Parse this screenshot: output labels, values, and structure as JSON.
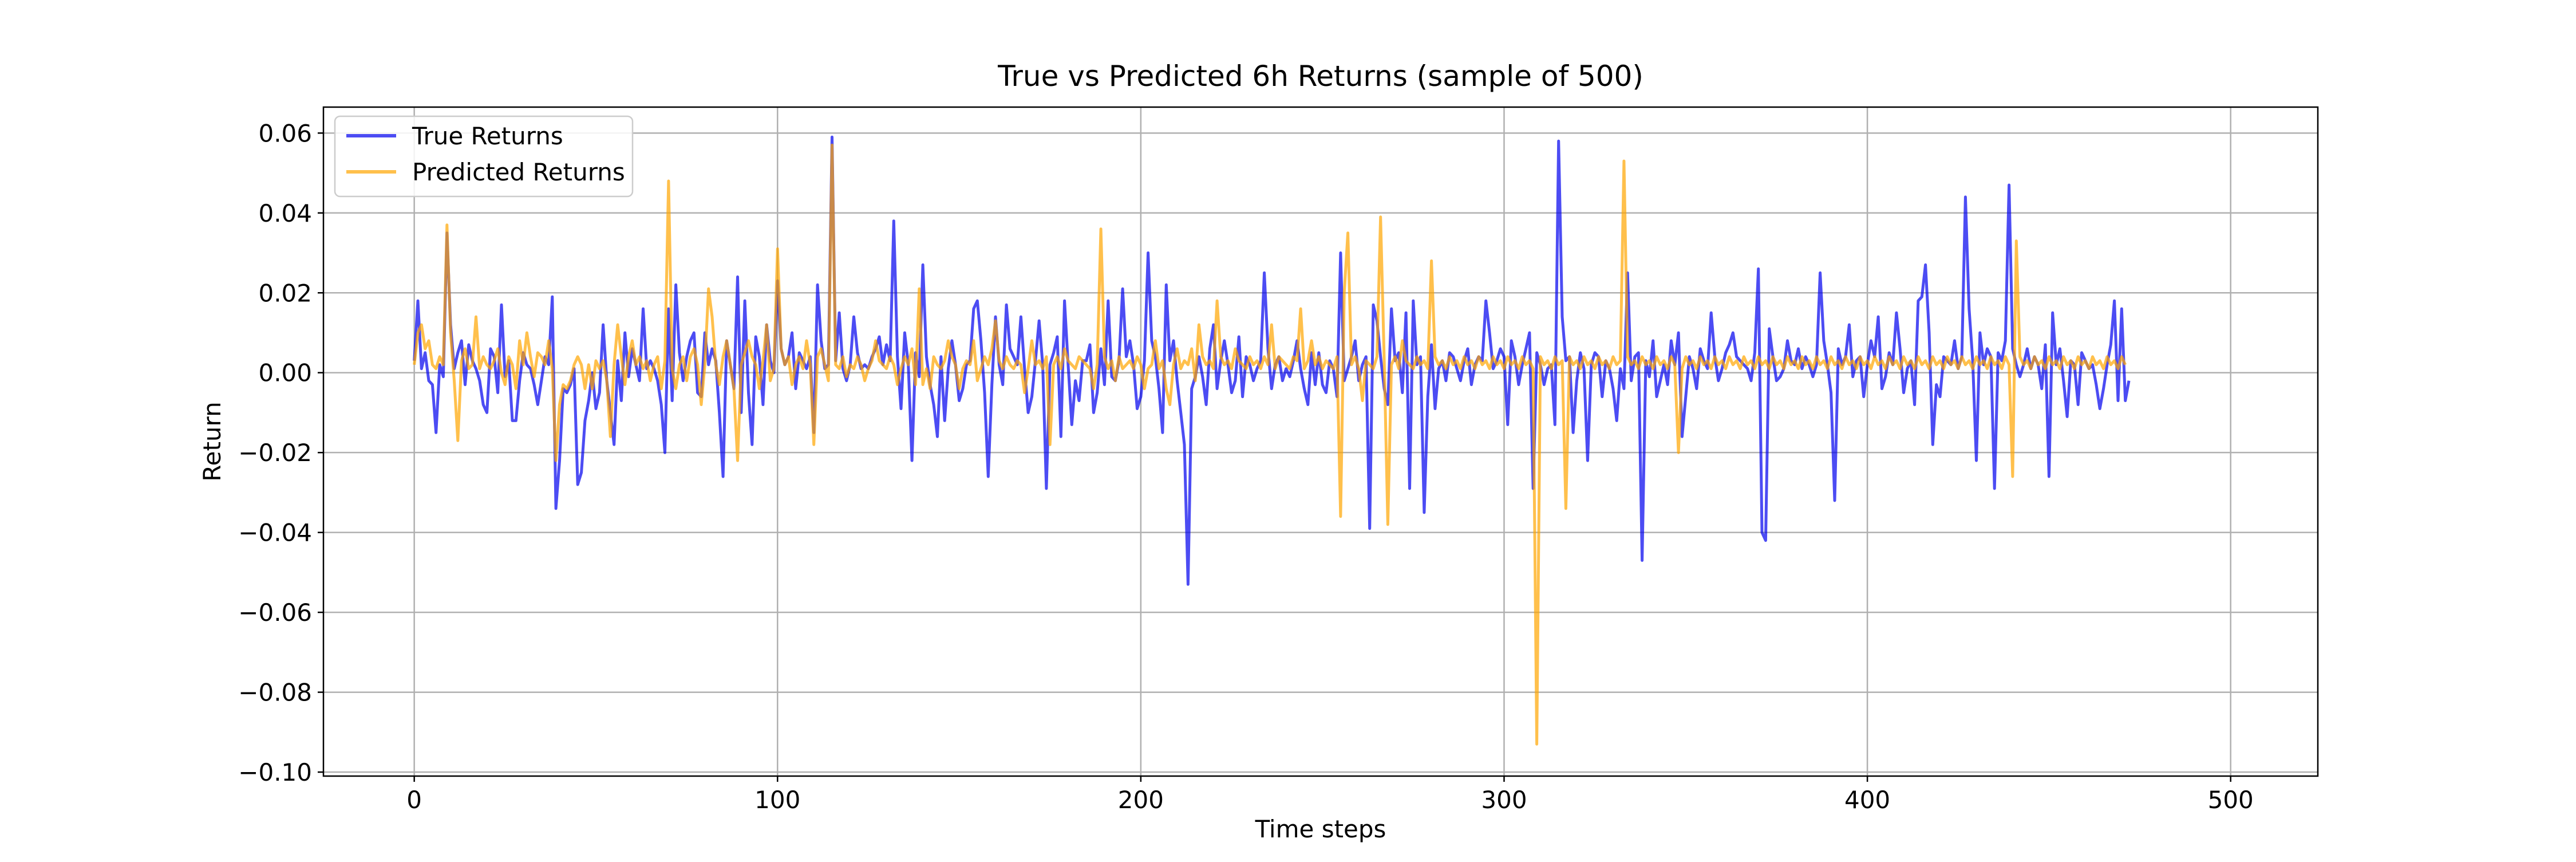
{
  "chart_data": {
    "type": "line",
    "title": "True vs Predicted 6h Returns (sample of 500)",
    "xlabel": "Time steps",
    "ylabel": "Return",
    "xlim": [
      -25,
      524
    ],
    "ylim": [
      -0.101,
      0.0665
    ],
    "xticks": [
      0,
      100,
      200,
      300,
      400,
      500
    ],
    "xtick_labels": [
      "0",
      "100",
      "200",
      "300",
      "400",
      "500"
    ],
    "yticks": [
      0.06,
      0.04,
      0.02,
      0.0,
      -0.02,
      -0.04,
      -0.06,
      -0.08,
      -0.1
    ],
    "ytick_labels": [
      "0.06",
      "0.04",
      "0.02",
      "0.00",
      "−0.02",
      "−0.04",
      "−0.06",
      "−0.08",
      "−0.10"
    ],
    "grid": true,
    "legend_position": "upper-left",
    "series": [
      {
        "name": "True Returns",
        "color": "#0000ee",
        "opacity": 0.7,
        "x_start": 0,
        "values": [
          0.003,
          0.018,
          0.001,
          0.005,
          -0.002,
          -0.003,
          -0.015,
          0.002,
          -0.001,
          0.035,
          0.012,
          0.001,
          0.005,
          0.008,
          -0.003,
          0.007,
          0.003,
          0.001,
          -0.002,
          -0.008,
          -0.01,
          0.006,
          0.004,
          -0.005,
          0.017,
          -0.001,
          0.003,
          -0.012,
          -0.012,
          -0.002,
          0.005,
          0.002,
          0.001,
          -0.003,
          -0.008,
          -0.002,
          0.004,
          0.002,
          0.019,
          -0.034,
          -0.022,
          -0.004,
          -0.005,
          -0.003,
          0.001,
          -0.028,
          -0.025,
          -0.012,
          -0.007,
          0.0,
          -0.009,
          -0.005,
          0.012,
          -0.002,
          -0.01,
          -0.018,
          0.003,
          -0.007,
          0.01,
          -0.001,
          0.006,
          0.002,
          -0.002,
          0.016,
          0.001,
          0.003,
          0.001,
          -0.002,
          -0.008,
          -0.02,
          0.016,
          -0.007,
          0.022,
          0.005,
          -0.002,
          0.004,
          0.008,
          0.01,
          -0.005,
          -0.006,
          0.01,
          0.002,
          0.006,
          0.003,
          -0.01,
          -0.026,
          0.008,
          0.002,
          -0.004,
          0.024,
          -0.01,
          0.018,
          -0.005,
          -0.018,
          0.009,
          0.004,
          -0.008,
          0.012,
          0.003,
          0.0,
          0.023,
          0.006,
          0.002,
          0.004,
          0.01,
          -0.004,
          0.005,
          0.003,
          0.001,
          0.004,
          -0.015,
          0.022,
          0.008,
          0.001,
          0.002,
          0.059,
          0.003,
          0.015,
          0.001,
          -0.002,
          0.002,
          0.014,
          0.005,
          0.001,
          0.002,
          0.001,
          0.004,
          0.006,
          0.009,
          0.002,
          0.007,
          0.003,
          0.038,
          0.004,
          -0.009,
          0.01,
          0.002,
          -0.022,
          0.005,
          -0.001,
          0.027,
          0.004,
          -0.003,
          -0.008,
          -0.016,
          0.004,
          -0.012,
          0.001,
          0.008,
          0.002,
          -0.007,
          -0.004,
          0.002,
          0.003,
          0.016,
          0.018,
          0.008,
          -0.005,
          -0.026,
          -0.003,
          0.014,
          0.002,
          -0.003,
          0.017,
          0.006,
          0.004,
          0.002,
          0.014,
          0.001,
          -0.01,
          -0.006,
          0.003,
          0.013,
          0.002,
          -0.029,
          0.002,
          0.005,
          0.009,
          -0.016,
          0.018,
          0.002,
          -0.013,
          -0.002,
          -0.007,
          0.003,
          0.003,
          0.007,
          -0.01,
          -0.005,
          0.006,
          -0.003,
          0.018,
          -0.001,
          -0.002,
          0.003,
          0.021,
          0.004,
          0.008,
          0.002,
          -0.009,
          -0.006,
          0.003,
          0.03,
          0.008,
          0.004,
          -0.004,
          -0.015,
          0.022,
          0.003,
          0.008,
          -0.002,
          -0.01,
          -0.018,
          -0.053,
          -0.004,
          -0.001,
          0.004,
          -0.001,
          -0.008,
          0.006,
          0.012,
          -0.004,
          0.003,
          0.008,
          0.002,
          -0.005,
          -0.002,
          0.009,
          -0.006,
          0.004,
          0.002,
          -0.002,
          0.001,
          0.003,
          0.025,
          0.006,
          -0.004,
          0.002,
          0.004,
          -0.002,
          0.001,
          -0.001,
          0.003,
          0.008,
          0.001,
          -0.004,
          -0.008,
          0.005,
          -0.003,
          0.005,
          -0.003,
          -0.005,
          0.003,
          0.001,
          -0.006,
          0.03,
          -0.002,
          0.001,
          0.004,
          0.008,
          -0.002,
          0.002,
          0.004,
          -0.039,
          0.017,
          0.013,
          0.004,
          -0.004,
          -0.008,
          0.016,
          0.003,
          0.005,
          -0.005,
          0.015,
          -0.029,
          0.018,
          0.002,
          0.004,
          -0.035,
          -0.006,
          0.007,
          -0.009,
          0.001,
          0.003,
          -0.002,
          0.005,
          0.004,
          0.001,
          -0.002,
          0.003,
          0.006,
          -0.003,
          0.002,
          0.004,
          0.003,
          0.018,
          0.01,
          0.001,
          0.003,
          0.006,
          0.004,
          -0.013,
          0.008,
          0.004,
          -0.003,
          0.002,
          0.006,
          0.01,
          -0.029,
          0.005,
          0.002,
          -0.003,
          0.001,
          0.002,
          -0.013,
          0.058,
          0.014,
          0.003,
          0.004,
          -0.015,
          -0.002,
          0.005,
          0.001,
          -0.022,
          0.002,
          0.005,
          0.004,
          -0.006,
          0.003,
          0.001,
          -0.004,
          -0.012,
          0.001,
          -0.004,
          0.025,
          -0.002,
          0.004,
          0.005,
          -0.047,
          0.003,
          -0.001,
          0.008,
          -0.006,
          -0.002,
          0.002,
          -0.003,
          0.008,
          0.002,
          0.01,
          -0.016,
          -0.006,
          0.004,
          0.001,
          -0.004,
          0.006,
          0.003,
          0.001,
          0.015,
          0.004,
          -0.002,
          0.001,
          0.005,
          0.007,
          0.01,
          0.004,
          0.003,
          0.002,
          0.001,
          -0.002,
          0.005,
          0.026,
          -0.04,
          -0.042,
          0.011,
          0.004,
          -0.002,
          -0.001,
          0.001,
          0.008,
          0.003,
          0.002,
          0.006,
          0.001,
          0.004,
          0.002,
          -0.001,
          0.002,
          0.025,
          0.008,
          0.002,
          -0.005,
          -0.032,
          0.006,
          0.002,
          0.004,
          0.012,
          -0.001,
          0.003,
          0.004,
          -0.006,
          0.002,
          0.008,
          0.004,
          0.014,
          -0.004,
          -0.001,
          0.005,
          0.002,
          0.015,
          0.006,
          -0.005,
          0.001,
          0.003,
          -0.008,
          0.018,
          0.019,
          0.027,
          0.01,
          -0.018,
          -0.003,
          -0.006,
          0.004,
          0.003,
          0.002,
          0.008,
          0.001,
          0.004,
          0.044,
          0.016,
          0.003,
          -0.022,
          0.01,
          0.002,
          0.006,
          0.004,
          -0.029,
          0.005,
          0.003,
          0.008,
          0.047,
          0.006,
          0.002,
          -0.001,
          0.002,
          0.006,
          0.001,
          0.004,
          0.002,
          -0.004,
          0.007,
          -0.026,
          0.015,
          0.002,
          0.006,
          -0.002,
          -0.011,
          0.003,
          0.002,
          -0.008,
          0.005,
          0.003,
          0.001,
          0.002,
          -0.003,
          -0.009,
          -0.004,
          0.002,
          0.007,
          0.018,
          -0.007,
          0.016,
          -0.007,
          -0.002
        ]
      },
      {
        "name": "Predicted Returns",
        "color": "#ffa500",
        "opacity": 0.7,
        "x_start": 0,
        "values": [
          0.002,
          0.01,
          0.012,
          0.006,
          0.008,
          0.002,
          0.001,
          0.004,
          0.002,
          0.037,
          0.01,
          -0.002,
          -0.017,
          0.003,
          0.006,
          0.001,
          0.002,
          0.014,
          0.001,
          0.004,
          0.002,
          0.001,
          0.003,
          0.006,
          0.0,
          -0.003,
          0.004,
          0.002,
          -0.004,
          0.008,
          0.002,
          0.01,
          0.004,
          -0.001,
          0.005,
          0.004,
          0.002,
          0.008,
          0.001,
          -0.022,
          -0.008,
          -0.003,
          -0.004,
          -0.002,
          0.002,
          0.004,
          0.002,
          -0.004,
          0.002,
          -0.004,
          0.003,
          0.001,
          0.003,
          -0.002,
          -0.016,
          0.002,
          0.012,
          0.004,
          -0.003,
          0.004,
          0.008,
          0.002,
          0.004,
          0.001,
          0.003,
          -0.002,
          0.002,
          0.004,
          -0.004,
          0.003,
          0.048,
          0.001,
          -0.004,
          0.002,
          0.004,
          -0.002,
          0.004,
          0.006,
          0.002,
          -0.008,
          0.002,
          0.021,
          0.014,
          0.002,
          -0.003,
          0.004,
          0.008,
          0.002,
          -0.004,
          -0.022,
          0.002,
          0.005,
          0.008,
          0.004,
          0.002,
          -0.004,
          0.003,
          0.012,
          -0.002,
          0.001,
          0.031,
          0.006,
          0.002,
          0.004,
          -0.003,
          0.002,
          0.004,
          0.001,
          0.008,
          0.002,
          -0.018,
          0.004,
          0.006,
          0.002,
          -0.002,
          0.057,
          0.002,
          0.001,
          0.004,
          -0.001,
          0.002,
          0.001,
          0.004,
          0.002,
          -0.002,
          0.001,
          0.003,
          0.008,
          0.003,
          0.002,
          0.001,
          0.004,
          0.002,
          -0.003,
          0.001,
          0.004,
          0.002,
          0.006,
          -0.003,
          0.021,
          -0.003,
          0.001,
          -0.004,
          0.004,
          0.002,
          0.001,
          0.003,
          0.008,
          0.004,
          0.002,
          -0.004,
          0.001,
          0.003,
          0.002,
          0.008,
          -0.002,
          0.001,
          0.004,
          0.002,
          0.006,
          0.013,
          0.003,
          0.001,
          0.004,
          0.002,
          0.001,
          0.003,
          0.002,
          -0.005,
          0.001,
          0.008,
          0.002,
          0.003,
          0.001,
          0.004,
          -0.018,
          0.002,
          0.004,
          0.001,
          0.006,
          0.003,
          0.002,
          0.001,
          0.004,
          0.003,
          0.002,
          0.001,
          -0.004,
          0.002,
          0.036,
          0.004,
          0.001,
          0.003,
          -0.002,
          0.004,
          0.001,
          0.002,
          0.003,
          0.001,
          0.004,
          0.002,
          -0.004,
          0.001,
          0.002,
          0.008,
          0.001,
          0.003,
          -0.004,
          -0.008,
          0.002,
          0.006,
          0.001,
          0.003,
          0.002,
          0.006,
          -0.002,
          0.012,
          0.004,
          0.002,
          0.003,
          0.001,
          0.018,
          0.004,
          0.002,
          0.003,
          0.001,
          0.006,
          0.003,
          0.002,
          0.001,
          0.004,
          0.002,
          0.003,
          0.001,
          0.004,
          0.002,
          0.012,
          0.001,
          0.004,
          0.003,
          0.002,
          0.001,
          0.004,
          0.003,
          0.016,
          0.001,
          0.003,
          0.008,
          0.002,
          0.004,
          0.001,
          0.003,
          0.002,
          0.001,
          0.004,
          -0.036,
          0.02,
          0.035,
          0.002,
          0.004,
          0.001,
          -0.007,
          0.003,
          0.002,
          0.001,
          0.004,
          0.039,
          0.003,
          -0.038,
          0.002,
          0.004,
          0.001,
          0.008,
          0.003,
          0.002,
          0.001,
          0.004,
          0.002,
          0.003,
          0.001,
          0.028,
          0.004,
          0.002,
          0.003,
          0.001,
          0.004,
          0.002,
          0.003,
          0.001,
          0.004,
          0.002,
          0.003,
          0.001,
          0.004,
          0.002,
          0.003,
          0.001,
          0.004,
          0.002,
          0.003,
          0.001,
          0.004,
          0.002,
          0.003,
          0.001,
          0.004,
          0.002,
          0.003,
          0.001,
          -0.093,
          0.004,
          0.002,
          0.003,
          0.001,
          0.004,
          0.002,
          0.003,
          -0.034,
          0.004,
          0.002,
          0.003,
          0.001,
          0.004,
          0.002,
          0.003,
          0.001,
          0.004,
          0.002,
          0.003,
          0.001,
          0.004,
          0.002,
          0.003,
          0.053,
          0.004,
          0.002,
          0.003,
          0.001,
          0.004,
          0.002,
          0.003,
          0.001,
          0.004,
          0.002,
          0.003,
          0.001,
          0.004,
          0.002,
          -0.02,
          0.001,
          0.004,
          0.002,
          0.003,
          0.001,
          0.004,
          0.002,
          0.003,
          0.001,
          0.004,
          0.002,
          0.003,
          0.001,
          0.004,
          0.002,
          0.003,
          0.001,
          0.004,
          0.002,
          0.003,
          0.001,
          0.004,
          0.002,
          0.003,
          0.001,
          0.004,
          0.002,
          0.003,
          0.001,
          0.004,
          0.002,
          0.003,
          0.001,
          0.004,
          0.002,
          0.003,
          0.001,
          0.004,
          0.002,
          0.003,
          0.001,
          0.004,
          0.002,
          0.003,
          0.001,
          0.004,
          0.002,
          0.003,
          0.001,
          0.004,
          0.002,
          0.003,
          0.001,
          0.004,
          0.002,
          0.003,
          0.001,
          0.004,
          0.002,
          0.003,
          0.001,
          0.004,
          0.002,
          0.003,
          0.001,
          0.004,
          0.002,
          0.003,
          0.001,
          0.004,
          0.002,
          0.003,
          0.001,
          0.004,
          0.002,
          0.003,
          0.001,
          0.004,
          0.002,
          0.003,
          0.001,
          0.004,
          0.002,
          0.003,
          0.001,
          0.004,
          0.002,
          0.003,
          0.001,
          0.004,
          0.002,
          -0.026,
          0.033,
          0.004,
          0.002,
          0.003,
          0.001,
          0.004,
          0.002,
          0.003,
          0.001,
          0.004,
          0.002,
          0.003,
          0.001,
          0.004,
          0.002,
          0.003,
          0.001,
          0.004,
          0.002,
          0.003,
          0.001,
          0.004,
          0.002,
          0.003,
          0.001,
          0.004,
          0.002,
          0.003,
          0.001,
          0.004,
          0.002
        ]
      }
    ]
  }
}
